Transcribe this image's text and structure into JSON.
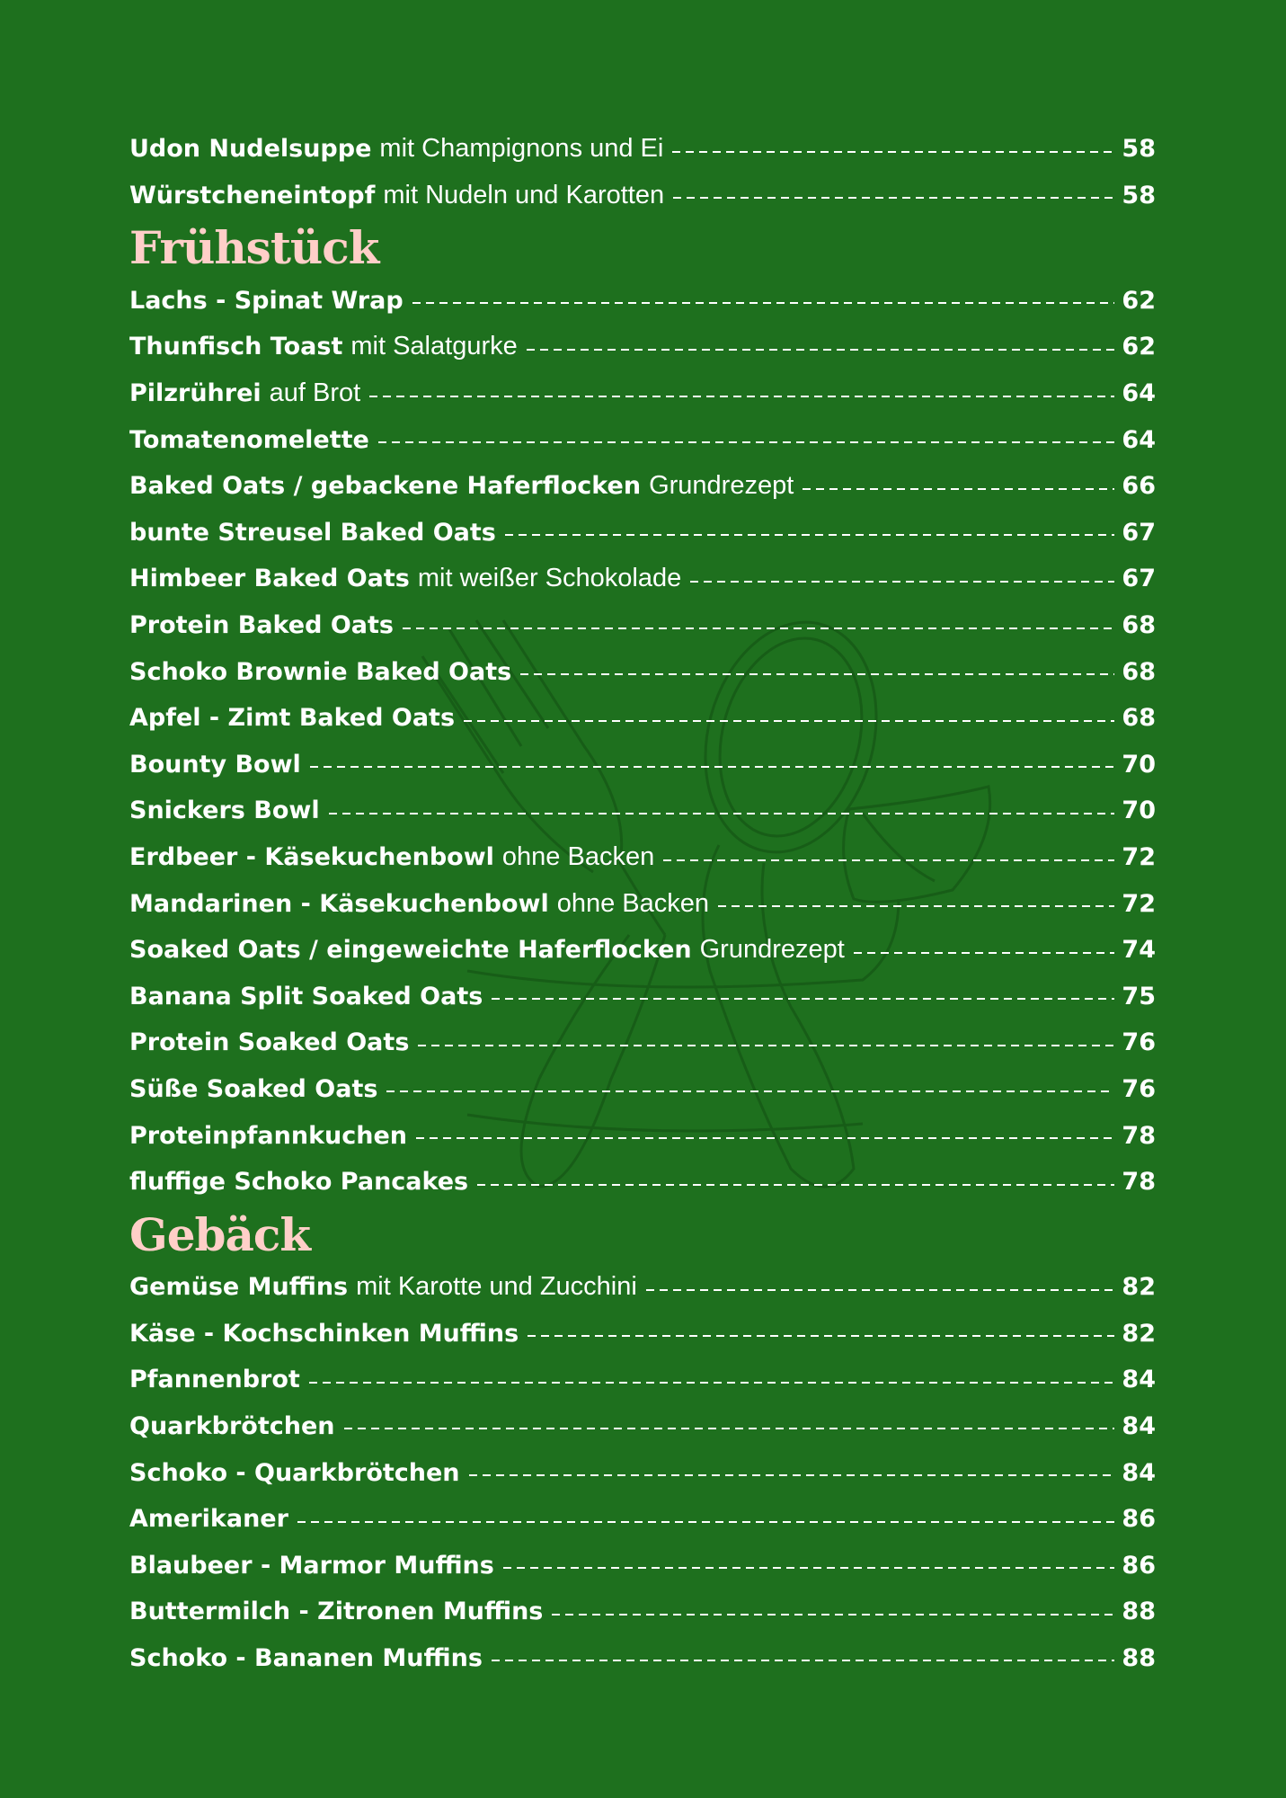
{
  "colors": {
    "background": "#1e701e",
    "heading": "#ffcfc8",
    "text": "#ffffff"
  },
  "illustration": "cutlery-sketch",
  "sections": [
    {
      "heading": "",
      "entries": [
        {
          "title": "Udon Nudelsuppe",
          "note": "mit Champignons und Ei",
          "page": "58"
        },
        {
          "title": "Würstcheneintopf",
          "note": "mit Nudeln und Karotten",
          "page": "58"
        }
      ]
    },
    {
      "heading": "Frühstück",
      "entries": [
        {
          "title": "Lachs - Spinat Wrap",
          "note": "",
          "page": "62"
        },
        {
          "title": "Thunfisch Toast",
          "note": "mit Salatgurke",
          "page": "62"
        },
        {
          "title": "Pilzrührei",
          "note": "auf Brot",
          "page": "64"
        },
        {
          "title": "Tomatenomelette",
          "note": "",
          "page": "64"
        },
        {
          "title": "Baked Oats / gebackene Haferflocken",
          "note": "Grundrezept",
          "page": "66"
        },
        {
          "title": "bunte Streusel Baked Oats",
          "note": "",
          "page": "67"
        },
        {
          "title": "Himbeer Baked Oats",
          "note": "mit weißer Schokolade",
          "page": "67"
        },
        {
          "title": "Protein Baked Oats",
          "note": "",
          "page": "68"
        },
        {
          "title": "Schoko Brownie Baked Oats",
          "note": "",
          "page": "68"
        },
        {
          "title": "Apfel - Zimt Baked Oats",
          "note": "",
          "page": "68"
        },
        {
          "title": "Bounty Bowl",
          "note": "",
          "page": "70"
        },
        {
          "title": "Snickers Bowl",
          "note": "",
          "page": "70"
        },
        {
          "title": "Erdbeer - Käsekuchenbowl",
          "note": "ohne Backen",
          "page": "72"
        },
        {
          "title": "Mandarinen - Käsekuchenbowl",
          "note": "ohne Backen",
          "page": "72"
        },
        {
          "title": "Soaked Oats / eingeweichte Haferflocken",
          "note": "Grundrezept",
          "page": "74"
        },
        {
          "title": "Banana Split Soaked Oats",
          "note": "",
          "page": "75"
        },
        {
          "title": "Protein Soaked Oats",
          "note": "",
          "page": "76"
        },
        {
          "title": "Süße Soaked Oats",
          "note": "",
          "page": "76"
        },
        {
          "title": "Proteinpfannkuchen",
          "note": "",
          "page": "78"
        },
        {
          "title": "fluffige Schoko Pancakes",
          "note": "",
          "page": "78"
        }
      ]
    },
    {
      "heading": "Gebäck",
      "entries": [
        {
          "title": "Gemüse Muffins",
          "note": "mit Karotte und Zucchini",
          "page": "82"
        },
        {
          "title": "Käse - Kochschinken Muffins",
          "note": "",
          "page": "82"
        },
        {
          "title": "Pfannenbrot",
          "note": "",
          "page": "84"
        },
        {
          "title": "Quarkbrötchen",
          "note": "",
          "page": "84"
        },
        {
          "title": "Schoko - Quarkbrötchen",
          "note": "",
          "page": "84"
        },
        {
          "title": "Amerikaner",
          "note": "",
          "page": "86"
        },
        {
          "title": "Blaubeer - Marmor Muffins",
          "note": "",
          "page": "86"
        },
        {
          "title": "Buttermilch - Zitronen Muffins",
          "note": "",
          "page": "88"
        },
        {
          "title": "Schoko - Bananen Muffins",
          "note": "",
          "page": "88"
        }
      ]
    }
  ]
}
